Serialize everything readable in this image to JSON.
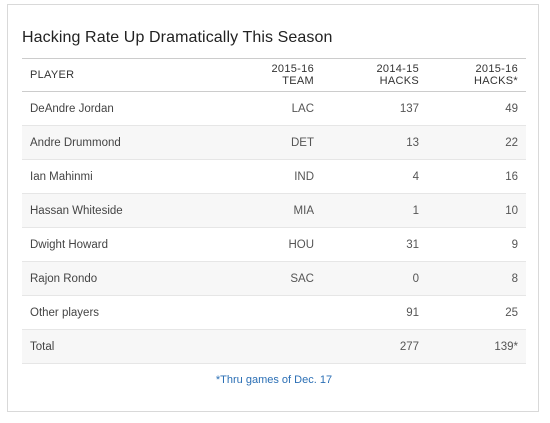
{
  "title": "Hacking Rate Up Dramatically This Season",
  "columns": {
    "player": "PLAYER",
    "team_line1": "2015-16",
    "team_line2": "TEAM",
    "hacks1_line1": "2014-15",
    "hacks1_line2": "HACKS",
    "hacks2_line1": "2015-16",
    "hacks2_line2": "HACKS*"
  },
  "rows": [
    {
      "player": "DeAndre Jordan",
      "team": "LAC",
      "hacks_2014_15": "137",
      "hacks_2015_16": "49"
    },
    {
      "player": "Andre Drummond",
      "team": "DET",
      "hacks_2014_15": "13",
      "hacks_2015_16": "22"
    },
    {
      "player": "Ian Mahinmi",
      "team": "IND",
      "hacks_2014_15": "4",
      "hacks_2015_16": "16"
    },
    {
      "player": "Hassan Whiteside",
      "team": "MIA",
      "hacks_2014_15": "1",
      "hacks_2015_16": "10"
    },
    {
      "player": "Dwight Howard",
      "team": "HOU",
      "hacks_2014_15": "31",
      "hacks_2015_16": "9"
    },
    {
      "player": "Rajon Rondo",
      "team": "SAC",
      "hacks_2014_15": "0",
      "hacks_2015_16": "8"
    },
    {
      "player": "Other players",
      "team": "",
      "hacks_2014_15": "91",
      "hacks_2015_16": "25"
    },
    {
      "player": "Total",
      "team": "",
      "hacks_2014_15": "277",
      "hacks_2015_16": "139*"
    }
  ],
  "footnote": "*Thru games of Dec. 17",
  "colors": {
    "footnote": "#2b6fb5",
    "stripe": "#f7f7f7",
    "border": "#cccccc"
  }
}
